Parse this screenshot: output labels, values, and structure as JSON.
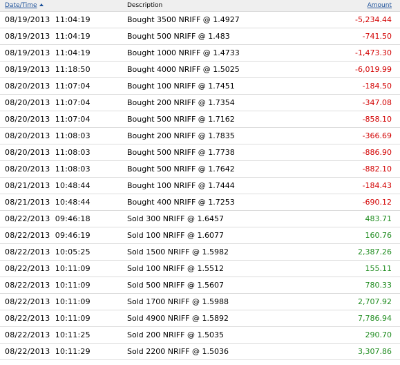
{
  "table": {
    "headers": {
      "datetime": "Date/Time",
      "description": "Description",
      "amount": "Amount"
    },
    "sort": {
      "column": "datetime",
      "direction": "ascending",
      "indicator_icon": "sort-ascending-arrow-icon"
    },
    "colors": {
      "negative": "#d20000",
      "positive": "#1f8c1f",
      "link": "#1a4f99"
    },
    "rows": [
      {
        "datetime": "08/19/2013  11:04:19",
        "description": "Bought 3500 NRIFF @ 1.4927",
        "amount": "-5,234.44",
        "sign": "neg"
      },
      {
        "datetime": "08/19/2013  11:04:19",
        "description": "Bought 500 NRIFF @ 1.483",
        "amount": "-741.50",
        "sign": "neg"
      },
      {
        "datetime": "08/19/2013  11:04:19",
        "description": "Bought 1000 NRIFF @ 1.4733",
        "amount": "-1,473.30",
        "sign": "neg"
      },
      {
        "datetime": "08/19/2013  11:18:50",
        "description": "Bought 4000 NRIFF @ 1.5025",
        "amount": "-6,019.99",
        "sign": "neg"
      },
      {
        "datetime": "08/20/2013  11:07:04",
        "description": "Bought 100 NRIFF @ 1.7451",
        "amount": "-184.50",
        "sign": "neg"
      },
      {
        "datetime": "08/20/2013  11:07:04",
        "description": "Bought 200 NRIFF @ 1.7354",
        "amount": "-347.08",
        "sign": "neg"
      },
      {
        "datetime": "08/20/2013  11:07:04",
        "description": "Bought 500 NRIFF @ 1.7162",
        "amount": "-858.10",
        "sign": "neg"
      },
      {
        "datetime": "08/20/2013  11:08:03",
        "description": "Bought 200 NRIFF @ 1.7835",
        "amount": "-366.69",
        "sign": "neg"
      },
      {
        "datetime": "08/20/2013  11:08:03",
        "description": "Bought 500 NRIFF @ 1.7738",
        "amount": "-886.90",
        "sign": "neg"
      },
      {
        "datetime": "08/20/2013  11:08:03",
        "description": "Bought 500 NRIFF @ 1.7642",
        "amount": "-882.10",
        "sign": "neg"
      },
      {
        "datetime": "08/21/2013  10:48:44",
        "description": "Bought 100 NRIFF @ 1.7444",
        "amount": "-184.43",
        "sign": "neg"
      },
      {
        "datetime": "08/21/2013  10:48:44",
        "description": "Bought 400 NRIFF @ 1.7253",
        "amount": "-690.12",
        "sign": "neg"
      },
      {
        "datetime": "08/22/2013  09:46:18",
        "description": "Sold 300 NRIFF @ 1.6457",
        "amount": "483.71",
        "sign": "pos"
      },
      {
        "datetime": "08/22/2013  09:46:19",
        "description": "Sold 100 NRIFF @ 1.6077",
        "amount": "160.76",
        "sign": "pos"
      },
      {
        "datetime": "08/22/2013  10:05:25",
        "description": "Sold 1500 NRIFF @ 1.5982",
        "amount": "2,387.26",
        "sign": "pos"
      },
      {
        "datetime": "08/22/2013  10:11:09",
        "description": "Sold 100 NRIFF @ 1.5512",
        "amount": "155.11",
        "sign": "pos"
      },
      {
        "datetime": "08/22/2013  10:11:09",
        "description": "Sold 500 NRIFF @ 1.5607",
        "amount": "780.33",
        "sign": "pos"
      },
      {
        "datetime": "08/22/2013  10:11:09",
        "description": "Sold 1700 NRIFF @ 1.5988",
        "amount": "2,707.92",
        "sign": "pos"
      },
      {
        "datetime": "08/22/2013  10:11:09",
        "description": "Sold 4900 NRIFF @ 1.5892",
        "amount": "7,786.94",
        "sign": "pos"
      },
      {
        "datetime": "08/22/2013  10:11:25",
        "description": "Sold 200 NRIFF @ 1.5035",
        "amount": "290.70",
        "sign": "pos"
      },
      {
        "datetime": "08/22/2013  10:11:29",
        "description": "Sold 2200 NRIFF @ 1.5036",
        "amount": "3,307.86",
        "sign": "pos"
      }
    ]
  }
}
